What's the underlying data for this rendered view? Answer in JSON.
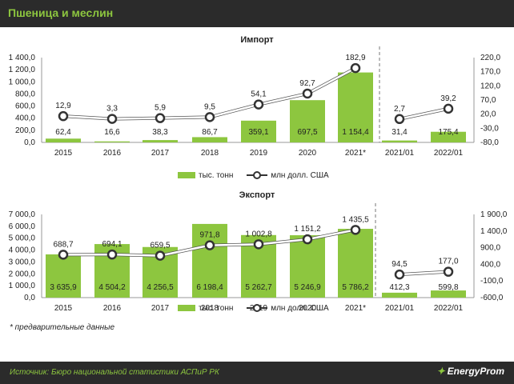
{
  "header": {
    "title": "Пшеница и меслин"
  },
  "footnote": "* предварительные данные",
  "footer": {
    "source": "Источник: Бюро национальной статистики АСПиР РК",
    "logo": "EnergyProm"
  },
  "colors": {
    "bar": "#8dc63f",
    "line": "#ffffff",
    "background": "#2b2b2b",
    "accent": "#8dc63f"
  },
  "chart_data": [
    {
      "type": "bar",
      "title": "Импорт",
      "categories": [
        "2015",
        "2016",
        "2017",
        "2018",
        "2019",
        "2020",
        "2021*",
        "2021/01",
        "2022/01"
      ],
      "series": [
        {
          "name": "тыс. тонн",
          "type": "bar",
          "axis": "left",
          "values": [
            62.4,
            16.6,
            38.3,
            86.7,
            359.1,
            697.5,
            1154.4,
            31.4,
            175.4
          ],
          "labels": [
            "62,4",
            "16,6",
            "38,3",
            "86,7",
            "359,1",
            "697,5",
            "1 154,4",
            "31,4",
            "175,4"
          ]
        },
        {
          "name": "млн долл. США",
          "type": "line",
          "axis": "right",
          "values": [
            12.9,
            3.3,
            5.9,
            9.5,
            54.1,
            92.7,
            182.9,
            2.7,
            39.2
          ],
          "labels": [
            "12,9",
            "3,3",
            "5,9",
            "9,5",
            "54,1",
            "92,7",
            "182,9",
            "2,7",
            "39,2"
          ]
        }
      ],
      "left_axis": {
        "ylim": [
          0,
          1400
        ],
        "ticks": [
          "0,0",
          "200,0",
          "400,0",
          "600,0",
          "800,0",
          "1 000,0",
          "1 200,0",
          "1 400,0"
        ]
      },
      "right_axis": {
        "ylim": [
          -80,
          220
        ],
        "ticks": [
          "-80,0",
          "-30,0",
          "20,0",
          "70,0",
          "120,0",
          "170,0",
          "220,0"
        ]
      },
      "legend": [
        "тыс. тонн",
        "млн долл. США"
      ]
    },
    {
      "type": "bar",
      "title": "Экспорт",
      "categories": [
        "2015",
        "2016",
        "2017",
        "2018",
        "2019",
        "2020",
        "2021*",
        "2021/01",
        "2022/01"
      ],
      "series": [
        {
          "name": "тыс. тонн",
          "type": "bar",
          "axis": "left",
          "values": [
            3635.9,
            4504.2,
            4256.5,
            6198.4,
            5262.7,
            5246.9,
            5786.2,
            412.3,
            599.8
          ],
          "labels": [
            "3 635,9",
            "4 504,2",
            "4 256,5",
            "6 198,4",
            "5 262,7",
            "5 246,9",
            "5 786,2",
            "412,3",
            "599,8"
          ]
        },
        {
          "name": "млн долл. США",
          "type": "line",
          "axis": "right",
          "values": [
            688.7,
            694.1,
            659.5,
            971.8,
            1002.8,
            1151.2,
            1435.5,
            94.5,
            177.0
          ],
          "labels": [
            "688,7",
            "694,1",
            "659,5",
            "971,8",
            "1 002,8",
            "1 151,2",
            "1 435,5",
            "94,5",
            "177,0"
          ]
        }
      ],
      "left_axis": {
        "ylim": [
          0,
          7000
        ],
        "ticks": [
          "0,0",
          "1 000,0",
          "2 000,0",
          "3 000,0",
          "4 000,0",
          "5 000,0",
          "6 000,0",
          "7 000,0"
        ]
      },
      "right_axis": {
        "ylim": [
          -600,
          1900
        ],
        "ticks": [
          "-600,0",
          "-100,0",
          "400,0",
          "900,0",
          "1 400,0",
          "1 900,0"
        ]
      },
      "legend": [
        "тыс. тонн",
        "млн долл. США"
      ]
    }
  ]
}
